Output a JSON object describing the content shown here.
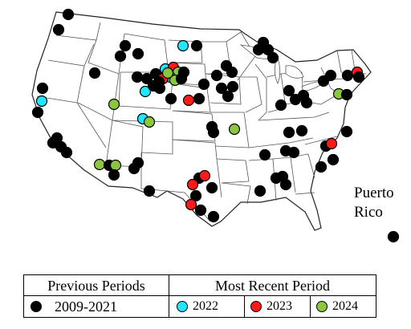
{
  "colors": {
    "previous": "#000000",
    "y2022": "#22e5ff",
    "y2023": "#ff1a1a",
    "y2024": "#8cc63f"
  },
  "map": {
    "puerto_rico_label": "Puerto\nRico",
    "points": [
      {
        "period": "previous",
        "label": "Puerto Rico"
      }
    ]
  },
  "legend": {
    "previous_header": "Previous Periods",
    "recent_header": "Most Recent Period",
    "previous_range": "2009-2021",
    "y2022": "2022",
    "y2023": "2023",
    "y2024": "2024"
  }
}
